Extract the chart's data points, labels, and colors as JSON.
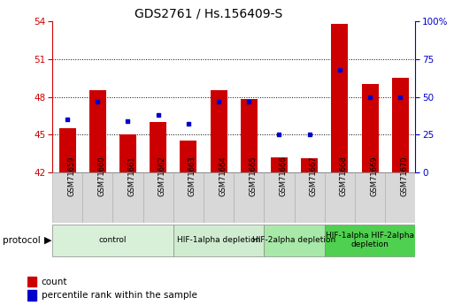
{
  "title": "GDS2761 / Hs.156409-S",
  "samples": [
    "GSM71659",
    "GSM71660",
    "GSM71661",
    "GSM71662",
    "GSM71663",
    "GSM71664",
    "GSM71665",
    "GSM71666",
    "GSM71667",
    "GSM71668",
    "GSM71669",
    "GSM71670"
  ],
  "bar_values": [
    45.5,
    48.5,
    45.0,
    46.0,
    44.5,
    48.5,
    47.8,
    43.2,
    43.1,
    53.8,
    49.0,
    49.5
  ],
  "dot_values_pct": [
    35,
    47,
    34,
    38,
    32,
    47,
    47,
    25,
    25,
    68,
    50,
    50
  ],
  "bar_color": "#cc0000",
  "dot_color": "#0000cc",
  "ymin": 42,
  "ymax": 54,
  "yticks": [
    42,
    45,
    48,
    51,
    54
  ],
  "y2min": 0,
  "y2max": 100,
  "y2ticks": [
    0,
    25,
    50,
    75,
    100
  ],
  "y2ticklabels": [
    "0",
    "25",
    "50",
    "75",
    "100%"
  ],
  "grid_values": [
    45,
    48,
    51
  ],
  "protocol_label": "protocol",
  "groups": [
    {
      "label": "control",
      "start": 0,
      "end": 4,
      "color": "#d8f0d8"
    },
    {
      "label": "HIF-1alpha depletion",
      "start": 4,
      "end": 7,
      "color": "#d0ecd0"
    },
    {
      "label": "HIF-2alpha depletion",
      "start": 7,
      "end": 9,
      "color": "#a8e8a8"
    },
    {
      "label": "HIF-1alpha HIF-2alpha\ndepletion",
      "start": 9,
      "end": 12,
      "color": "#50d050"
    }
  ],
  "legend_items": [
    {
      "label": "count",
      "color": "#cc0000"
    },
    {
      "label": "percentile rank within the sample",
      "color": "#0000cc"
    }
  ],
  "title_fontsize": 10,
  "tick_fontsize": 7.5,
  "sample_fontsize": 6,
  "group_fontsize": 6.5
}
